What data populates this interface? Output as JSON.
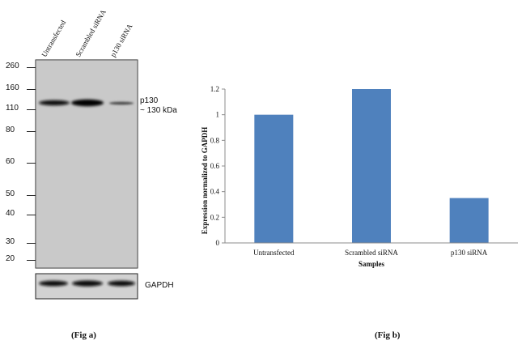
{
  "figure_a": {
    "lanes": [
      "Untransfected",
      "Scrambled siRNA",
      "p130 siRNA"
    ],
    "mw_markers": [
      "260",
      "160",
      "110",
      "80",
      "60",
      "50",
      "40",
      "30",
      "20"
    ],
    "band_label": "p130",
    "band_size": "~ 130 kDa",
    "loading_control": "GAPDH",
    "caption": "(Fig a)"
  },
  "figure_b": {
    "caption": "(Fig b)"
  },
  "chart_data": {
    "type": "bar",
    "categories": [
      "Untransfected",
      "Scrambled siRNA",
      "p130 siRNA"
    ],
    "values": [
      1.0,
      1.2,
      0.35
    ],
    "xlabel": "Samples",
    "ylabel": "Expression normalized to GAPDH",
    "ylim": [
      0,
      1.2
    ],
    "yticks": [
      "0",
      "0.2",
      "0.4",
      "0.6",
      "0.8",
      "1",
      "1.2"
    ],
    "bar_color": "#4f81bd",
    "grid": false,
    "legend": "none"
  }
}
